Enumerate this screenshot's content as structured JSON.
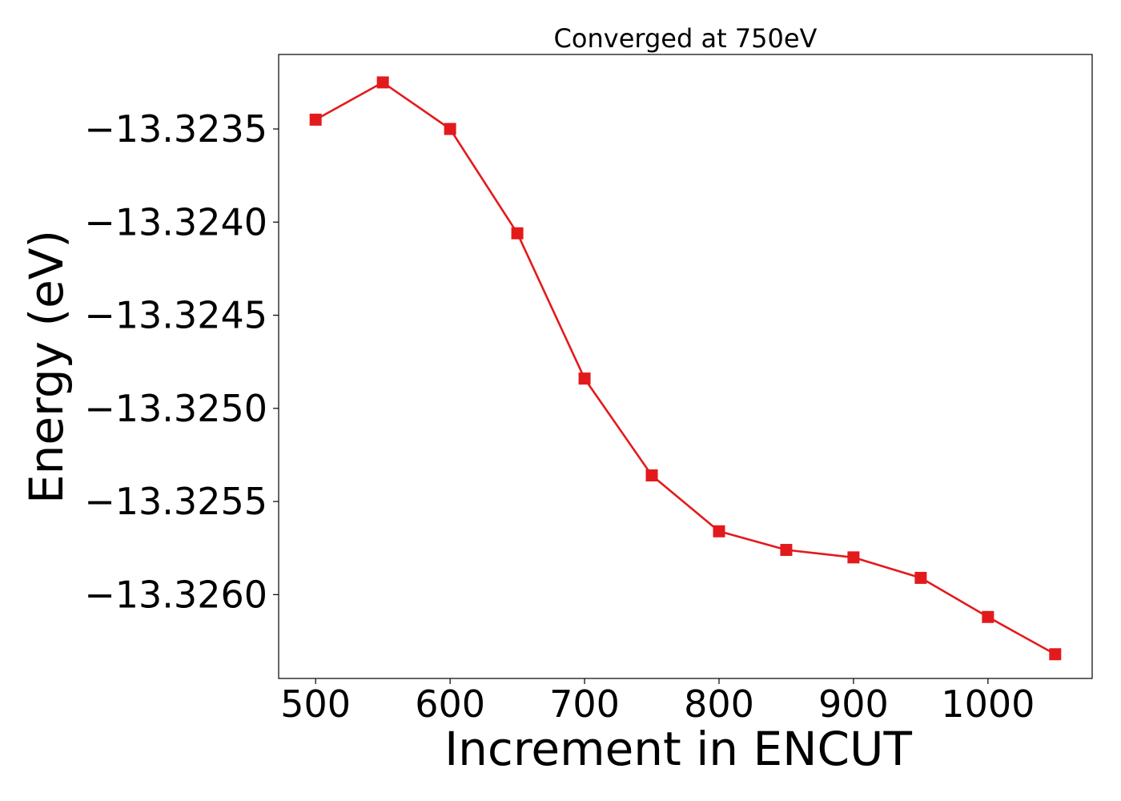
{
  "chart_data": {
    "type": "line",
    "title": "Converged at 750eV",
    "xlabel": "Increment in ENCUT",
    "ylabel": "Energy (eV)",
    "xlim": [
      472.5,
      1077.5
    ],
    "ylim": [
      -13.32645,
      -13.3231
    ],
    "xticks": [
      500,
      600,
      700,
      800,
      900,
      1000
    ],
    "xtick_labels": [
      "500",
      "600",
      "700",
      "800",
      "900",
      "1000"
    ],
    "yticks": [
      -13.3235,
      -13.324,
      -13.3245,
      -13.325,
      -13.3255,
      -13.326
    ],
    "ytick_labels": [
      "−13.3235",
      "−13.3240",
      "−13.3245",
      "−13.3250",
      "−13.3255",
      "−13.3260"
    ],
    "grid": false,
    "series": [
      {
        "color": "#e31a1c",
        "marker": "square",
        "x": [
          500,
          550,
          600,
          650,
          700,
          750,
          800,
          850,
          900,
          950,
          1000,
          1050
        ],
        "y": [
          -13.32345,
          -13.32325,
          -13.3235,
          -13.32406,
          -13.32484,
          -13.32536,
          -13.32566,
          -13.32576,
          -13.3258,
          -13.32591,
          -13.32612,
          -13.32632
        ]
      }
    ]
  }
}
